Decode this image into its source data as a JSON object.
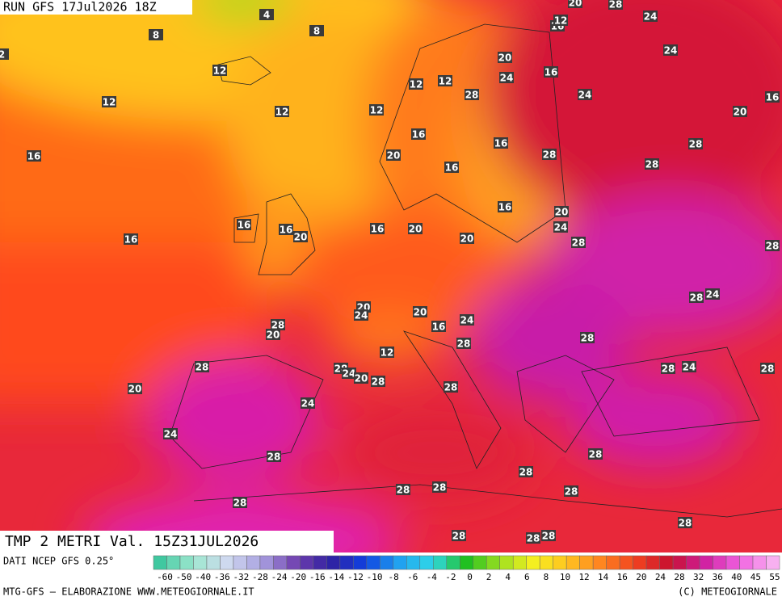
{
  "header": {
    "run": "RUN GFS 17Jul2026 18Z"
  },
  "map": {
    "title": "TMP 2 METRI Val. 15Z31JUL2026",
    "contour_labels": [
      4,
      8,
      8,
      2,
      12,
      12,
      12,
      12,
      12,
      12,
      16,
      16,
      12,
      20,
      28,
      24,
      24,
      16,
      20,
      24,
      16,
      28,
      28,
      20,
      24,
      16,
      16,
      16,
      20,
      16,
      28,
      28,
      16,
      20,
      24,
      28,
      28,
      16,
      16,
      20,
      16,
      20,
      20,
      16,
      20,
      24,
      20,
      24,
      16,
      28,
      20,
      28,
      24,
      28,
      28,
      12,
      28,
      28,
      24,
      20,
      28,
      28,
      24,
      28,
      20,
      28,
      24,
      24,
      28,
      28,
      28,
      28,
      28,
      28,
      28,
      28,
      28,
      28,
      28
    ]
  },
  "footer": {
    "source": "DATI NCEP GFS 0.25°",
    "colorbar_ticks": [
      -60,
      -50,
      -40,
      -36,
      -32,
      -28,
      -24,
      -20,
      -16,
      -14,
      -12,
      -10,
      -8,
      -6,
      -4,
      -2,
      0,
      2,
      4,
      6,
      8,
      10,
      12,
      14,
      16,
      20,
      24,
      28,
      32,
      36,
      40,
      45,
      55
    ],
    "credit": "MTG-GFS — ELABORAZIONE WWW.METEOGIORNALE.IT",
    "copyright": "(C) METEOGIORNALE"
  }
}
